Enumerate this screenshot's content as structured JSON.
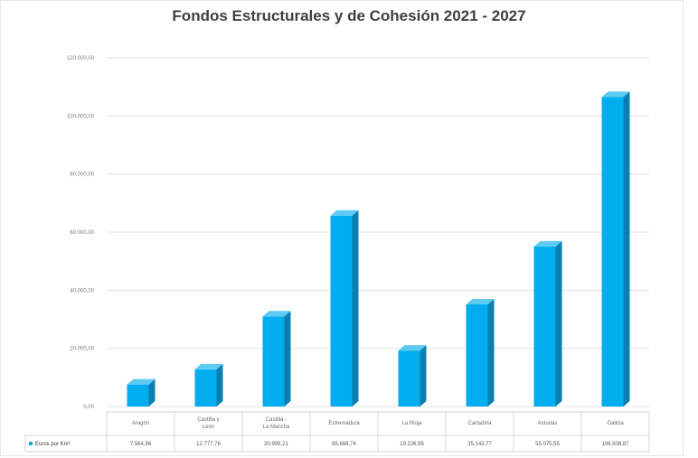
{
  "chart_data": {
    "type": "bar",
    "title": "Fondos Estructurales y de Cohesión 2021 - 2027",
    "categories": [
      "Aragón",
      "Castilla y\nLeón",
      "Castilla -\nLa Mancha",
      "Extremadura",
      "La Rioja",
      "Cantabria",
      "Asturias",
      "Galicia"
    ],
    "series": [
      {
        "name": "Euros por Km²",
        "values": [
          7564.96,
          12777.78,
          30995.21,
          65668.74,
          19226.95,
          35143.77,
          55075.55,
          106508.87
        ],
        "value_labels": [
          "7.564,96",
          "12.777,78",
          "30.995,21",
          "65.668,74",
          "19.226,95",
          "35.143,77",
          "55.075,55",
          "106.508,87"
        ]
      }
    ],
    "yticks": [
      0,
      20000,
      40000,
      60000,
      80000,
      100000,
      120000
    ],
    "ytick_labels": [
      "0,00",
      "20.000,00",
      "40.000,00",
      "60.000,00",
      "80.000,00",
      "100.000,00",
      "120.000,00"
    ],
    "ylim": [
      0,
      120000
    ],
    "xlabel": "",
    "ylabel": "",
    "grid": true,
    "legend": "left of data table",
    "bar_color": "#00aeef",
    "bar_side_color": "#0a7fb0",
    "bar_top_color": "#5ccaf3",
    "gridline_color": "#e3e3e3"
  }
}
